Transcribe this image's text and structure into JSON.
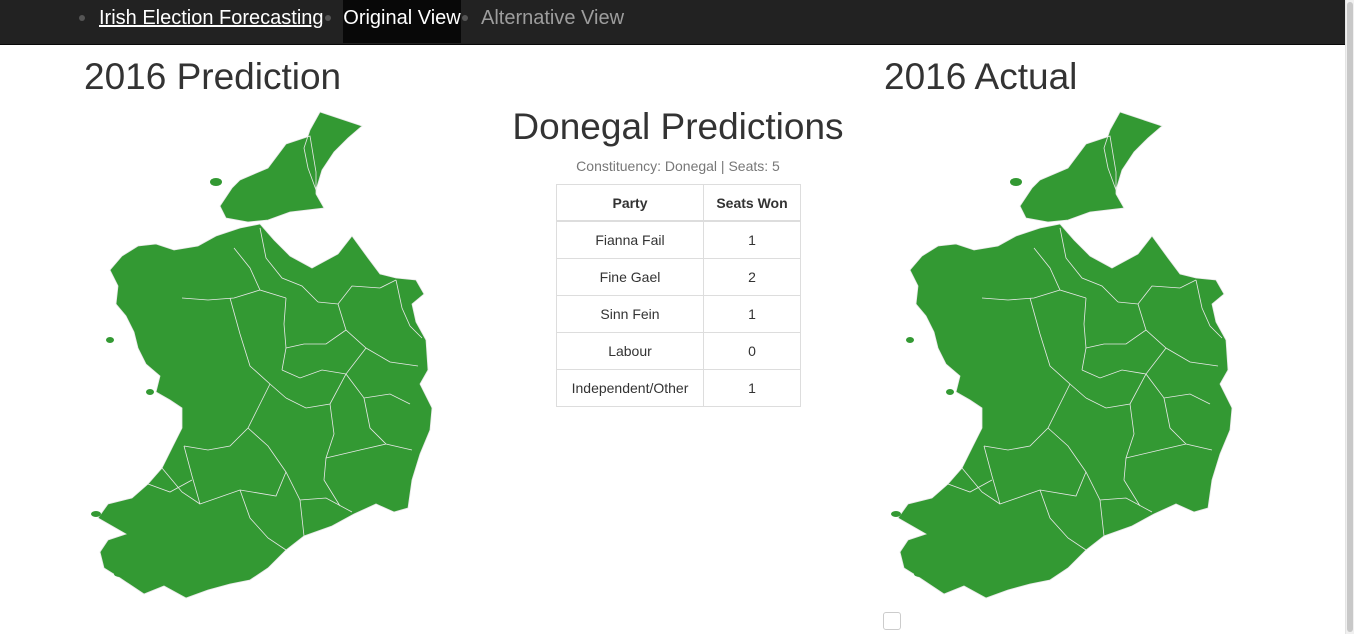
{
  "nav": {
    "brand": "Irish Election Forecasting",
    "items": [
      {
        "label": "Original View",
        "active": true
      },
      {
        "label": "Alternative View",
        "active": false
      }
    ]
  },
  "prediction": {
    "title": "2016 Prediction"
  },
  "actual": {
    "title": "2016 Actual"
  },
  "center": {
    "title": "Donegal Predictions",
    "subtitle": "Constituency: Donegal | Seats: 5",
    "table": {
      "headers": [
        "Party",
        "Seats Won"
      ],
      "rows": [
        {
          "party": "Fianna Fail",
          "seats": "1"
        },
        {
          "party": "Fine Gael",
          "seats": "2"
        },
        {
          "party": "Sinn Fein",
          "seats": "1"
        },
        {
          "party": "Labour",
          "seats": "0"
        },
        {
          "party": "Independent/Other",
          "seats": "1"
        }
      ]
    }
  },
  "colors": {
    "map_fill": "#339933",
    "map_border": "#e8e8e8",
    "navbar": "#222222"
  },
  "icons": {
    "nav_bullet": "dot"
  }
}
